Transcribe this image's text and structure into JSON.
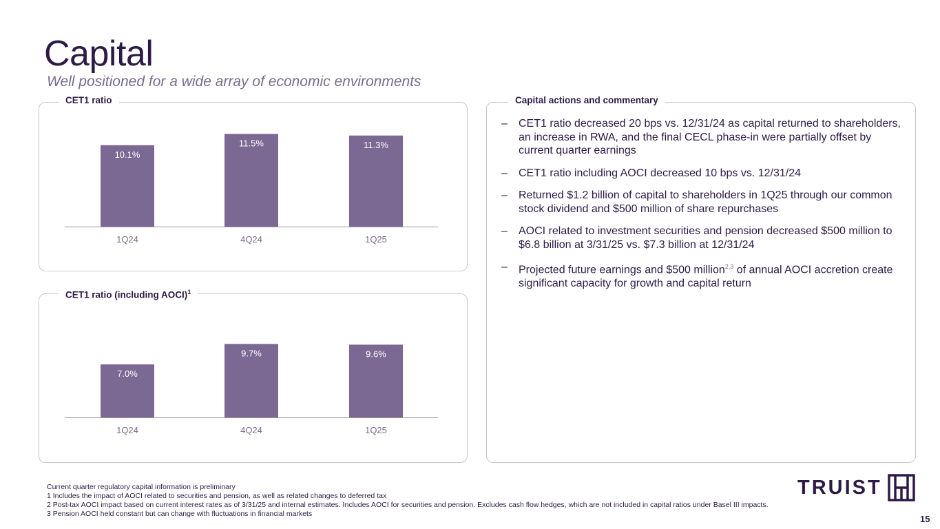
{
  "header": {
    "title": "Capital",
    "subtitle": "Well positioned for a wide array of economic environments"
  },
  "chart_data": [
    {
      "type": "bar",
      "title": "CET1 ratio",
      "categories": [
        "1Q24",
        "4Q24",
        "1Q25"
      ],
      "values": [
        10.1,
        11.5,
        11.3
      ],
      "value_labels": [
        "10.1%",
        "11.5%",
        "11.3%"
      ],
      "bar_color": "#7b6893",
      "xlabel": "",
      "ylabel": ""
    },
    {
      "type": "bar",
      "title": "CET1 ratio (including AOCI)",
      "title_sup": "1",
      "categories": [
        "1Q24",
        "4Q24",
        "1Q25"
      ],
      "values": [
        7.0,
        9.7,
        9.6
      ],
      "value_labels": [
        "7.0%",
        "9.7%",
        "9.6%"
      ],
      "bar_color": "#7b6893",
      "xlabel": "",
      "ylabel": ""
    }
  ],
  "commentary": {
    "heading": "Capital actions and commentary",
    "dash": "–",
    "bullets": [
      {
        "text": "CET1 ratio decreased 20 bps vs. 12/31/24 as capital returned to shareholders, an increase in RWA, and the final CECL phase-in were partially offset by current quarter earnings"
      },
      {
        "text": "CET1 ratio including AOCI decreased 10 bps vs. 12/31/24"
      },
      {
        "text": "Returned $1.2 billion of capital to shareholders in 1Q25 through our common stock dividend and $500 million of share repurchases"
      },
      {
        "text": "AOCI related to investment securities and pension decreased $500 million to $6.8 billion  at 3/31/25 vs. $7.3 billion at 12/31/24"
      },
      {
        "text_before": "Projected future earnings and $500 million",
        "sup": "2,3",
        "text_after": " of annual AOCI accretion create significant capacity for growth and capital return"
      }
    ]
  },
  "footnotes": [
    "Current quarter regulatory capital information is preliminary",
    "1 Includes the impact of AOCI related to securities and pension, as well as related changes to deferred tax",
    "2 Post-tax AOCI impact based on current interest rates as of 3/31/25 and internal estimates. Includes AOCI for securities and pension. Excludes cash flow hedges, which are not included in capital ratios under Basel III impacts.",
    "3 Pension AOCI held constant but can change with fluctuations in financial markets"
  ],
  "logo": {
    "text": "TRUIST"
  },
  "page_number": "15",
  "colors": {
    "brand": "#2e1a47",
    "bar": "#7b6893",
    "border": "#c9c6cf",
    "muted": "#7a6b8f"
  }
}
